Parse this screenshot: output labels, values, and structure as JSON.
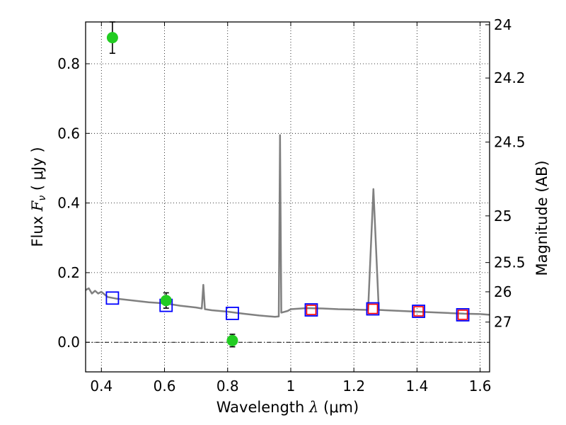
{
  "chart_data": {
    "type": "scatter",
    "xlabel": "Wavelength  λ (μm)",
    "ylabel": "Flux  F_ν  ( μJy )",
    "y2label": "Magnitude (AB)",
    "xlim": [
      0.35,
      1.63
    ],
    "ylim": [
      -0.085,
      0.92
    ],
    "xticks": [
      0.4,
      0.6,
      0.8,
      1.0,
      1.2,
      1.4,
      1.6
    ],
    "xtick_labels": [
      "0.4",
      "0.6",
      "0.8",
      "1",
      "1.2",
      "1.4",
      "1.6"
    ],
    "yticks": [
      0.0,
      0.2,
      0.4,
      0.6,
      0.8
    ],
    "ytick_labels": [
      "0.0",
      "0.2",
      "0.4",
      "0.6",
      "0.8"
    ],
    "y2ticks": [
      {
        "label": "24",
        "flux": 0.912
      },
      {
        "label": "24.2",
        "flux": 0.759
      },
      {
        "label": "24.5",
        "flux": 0.575
      },
      {
        "label": "25",
        "flux": 0.363
      },
      {
        "label": "25.5",
        "flux": 0.229
      },
      {
        "label": "26",
        "flux": 0.145
      },
      {
        "label": "27",
        "flux": 0.058
      }
    ],
    "grid": true,
    "series": [
      {
        "kind": "line",
        "color": "#808080",
        "points": [
          [
            0.35,
            0.15
          ],
          [
            0.36,
            0.155
          ],
          [
            0.37,
            0.14
          ],
          [
            0.38,
            0.148
          ],
          [
            0.39,
            0.14
          ],
          [
            0.4,
            0.145
          ],
          [
            0.42,
            0.13
          ],
          [
            0.45,
            0.125
          ],
          [
            0.5,
            0.12
          ],
          [
            0.55,
            0.115
          ],
          [
            0.6,
            0.112
          ],
          [
            0.65,
            0.105
          ],
          [
            0.7,
            0.1
          ],
          [
            0.718,
            0.097
          ],
          [
            0.723,
            0.165
          ],
          [
            0.728,
            0.095
          ],
          [
            0.75,
            0.092
          ],
          [
            0.8,
            0.088
          ],
          [
            0.85,
            0.082
          ],
          [
            0.9,
            0.077
          ],
          [
            0.95,
            0.073
          ],
          [
            0.962,
            0.074
          ],
          [
            0.966,
            0.595
          ],
          [
            0.97,
            0.085
          ],
          [
            0.99,
            0.09
          ],
          [
            1.0,
            0.095
          ],
          [
            1.05,
            0.098
          ],
          [
            1.1,
            0.097
          ],
          [
            1.15,
            0.095
          ],
          [
            1.2,
            0.094
          ],
          [
            1.245,
            0.093
          ],
          [
            1.262,
            0.44
          ],
          [
            1.279,
            0.093
          ],
          [
            1.3,
            0.092
          ],
          [
            1.4,
            0.088
          ],
          [
            1.5,
            0.084
          ],
          [
            1.55,
            0.082
          ],
          [
            1.6,
            0.081
          ],
          [
            1.63,
            0.079
          ]
        ]
      },
      {
        "kind": "points",
        "marker": "square-open",
        "color": "#0000ff",
        "x": [
          0.435,
          0.605,
          0.815,
          1.065,
          1.26,
          1.405,
          1.545
        ],
        "y": [
          0.127,
          0.106,
          0.083,
          0.093,
          0.096,
          0.089,
          0.079
        ]
      },
      {
        "kind": "points",
        "marker": "square-open",
        "color": "#ff0000",
        "x": [
          1.065,
          1.26,
          1.405,
          1.545
        ],
        "y": [
          0.093,
          0.096,
          0.089,
          0.079
        ]
      },
      {
        "kind": "points",
        "marker": "circle-filled",
        "color": "#22cc22",
        "x": [
          0.435,
          0.605,
          0.815
        ],
        "y": [
          0.875,
          0.12,
          0.005
        ],
        "yerr": [
          0.045,
          0.022,
          0.018
        ]
      }
    ]
  }
}
